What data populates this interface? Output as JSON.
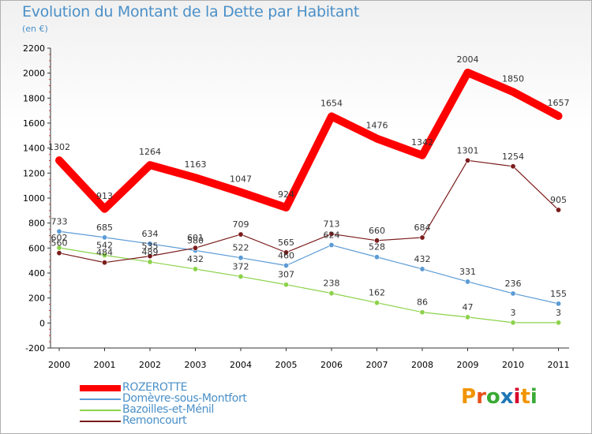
{
  "title": "Evolution du Montant de la Dette par Habitant",
  "subtitle": "(en €)",
  "logo": {
    "text": "Proxiti",
    "colors": [
      "#f29400",
      "#e8501a",
      "#3aaa35",
      "#1f77b4",
      "#d6002a",
      "#f29400",
      "#3aaa35"
    ]
  },
  "chart_data": {
    "type": "line",
    "x": [
      "2000",
      "2001",
      "2002",
      "2003",
      "2004",
      "2005",
      "2006",
      "2007",
      "2008",
      "2009",
      "2010",
      "2011"
    ],
    "ylim": [
      -200,
      2200
    ],
    "yticks": [
      "-200",
      "0",
      "200",
      "400",
      "600",
      "800",
      "1000",
      "1200",
      "1400",
      "1600",
      "1800",
      "2000",
      "2200"
    ],
    "grid": false,
    "legend_position": "bottom-left",
    "series": [
      {
        "name": "ROZEROTTE",
        "color": "#ff0000",
        "values": [
          1302,
          913,
          1264,
          1163,
          1047,
          924,
          1654,
          1476,
          1342,
          2004,
          1850,
          1657
        ],
        "labels": [
          "1302",
          "913",
          "1264",
          "1163",
          "1047",
          "924",
          "1654",
          "1476",
          "1342",
          "2004",
          "1850",
          "1657"
        ]
      },
      {
        "name": "Domèvre-sous-Montfort",
        "color": "#5b9bd5",
        "values": [
          733,
          685,
          634,
          580,
          522,
          460,
          624,
          528,
          432,
          331,
          236,
          155
        ],
        "labels": [
          "733",
          "685",
          "634",
          "580",
          "522",
          "460",
          "624",
          "528",
          "432",
          "331",
          "236",
          "155"
        ]
      },
      {
        "name": "Bazoilles-et-Ménil",
        "color": "#8cd24b",
        "values": [
          602,
          542,
          489,
          432,
          372,
          307,
          238,
          162,
          86,
          47,
          3,
          3
        ],
        "labels": [
          "602",
          "542",
          "489",
          "432",
          "372",
          "307",
          "238",
          "162",
          "86",
          "47",
          "3",
          "3"
        ]
      },
      {
        "name": "Remoncourt",
        "color": "#7b1c1c",
        "values": [
          560,
          484,
          535,
          601,
          709,
          565,
          713,
          660,
          684,
          1301,
          1254,
          905
        ],
        "labels": [
          "560",
          "484",
          "535",
          "601",
          "709",
          "565",
          "713",
          "660",
          "684",
          "1301",
          "1254",
          "905"
        ]
      }
    ]
  }
}
